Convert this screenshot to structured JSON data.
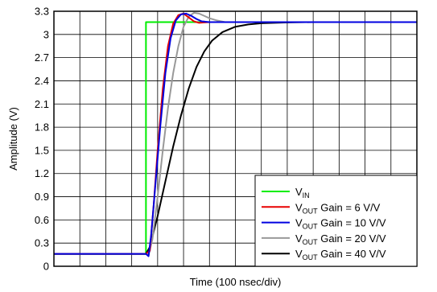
{
  "chart_data": {
    "type": "line",
    "xlabel": "Time (100 nsec/div)",
    "ylabel": "Amplitude (V)",
    "ylim": [
      0,
      3.3
    ],
    "x_divisions": 14,
    "y_ticks": [
      "0",
      "0.3",
      "0.6",
      "0.9",
      "1.2",
      "1.5",
      "1.8",
      "2.1",
      "2.4",
      "2.7",
      "3",
      "3.3"
    ],
    "grid": true,
    "legend_position": "bottom-right",
    "series": [
      {
        "name": "V_IN",
        "legend": {
          "main": "V",
          "sub": "IN",
          "rest": ""
        },
        "color": "#00ee00",
        "points": [
          [
            0,
            0.16
          ],
          [
            3.55,
            0.16
          ],
          [
            3.55,
            3.16
          ],
          [
            14,
            3.16
          ]
        ]
      },
      {
        "name": "V_OUT Gain = 6 V/V",
        "legend": {
          "main": "V",
          "sub": "OUT",
          "rest": " Gain = 6 V/V"
        },
        "color": "#e80000",
        "points": [
          [
            0,
            0.16
          ],
          [
            3.55,
            0.16
          ],
          [
            3.7,
            0.2
          ],
          [
            3.85,
            0.8
          ],
          [
            4.0,
            1.5
          ],
          [
            4.2,
            2.3
          ],
          [
            4.4,
            2.85
          ],
          [
            4.6,
            3.14
          ],
          [
            4.8,
            3.25
          ],
          [
            5.0,
            3.27
          ],
          [
            5.2,
            3.22
          ],
          [
            5.4,
            3.17
          ],
          [
            5.6,
            3.15
          ],
          [
            5.8,
            3.155
          ],
          [
            6.0,
            3.16
          ],
          [
            14,
            3.16
          ]
        ]
      },
      {
        "name": "V_OUT Gain = 10 V/V",
        "legend": {
          "main": "V",
          "sub": "OUT",
          "rest": " Gain = 10 V/V"
        },
        "color": "#0000e0",
        "points": [
          [
            0,
            0.16
          ],
          [
            3.55,
            0.16
          ],
          [
            3.65,
            0.13
          ],
          [
            3.75,
            0.4
          ],
          [
            3.9,
            1.0
          ],
          [
            4.1,
            1.8
          ],
          [
            4.3,
            2.5
          ],
          [
            4.5,
            2.95
          ],
          [
            4.7,
            3.18
          ],
          [
            4.9,
            3.26
          ],
          [
            5.1,
            3.27
          ],
          [
            5.3,
            3.24
          ],
          [
            5.5,
            3.2
          ],
          [
            5.7,
            3.17
          ],
          [
            6.0,
            3.16
          ],
          [
            14,
            3.16
          ]
        ]
      },
      {
        "name": "V_OUT Gain = 20 V/V",
        "legend": {
          "main": "V",
          "sub": "OUT",
          "rest": " Gain = 20 V/V"
        },
        "color": "#999999",
        "points": [
          [
            0,
            0.16
          ],
          [
            3.55,
            0.16
          ],
          [
            3.65,
            0.14
          ],
          [
            3.8,
            0.35
          ],
          [
            4.0,
            0.9
          ],
          [
            4.2,
            1.5
          ],
          [
            4.4,
            2.05
          ],
          [
            4.6,
            2.5
          ],
          [
            4.8,
            2.85
          ],
          [
            5.0,
            3.1
          ],
          [
            5.2,
            3.23
          ],
          [
            5.4,
            3.28
          ],
          [
            5.6,
            3.27
          ],
          [
            5.8,
            3.24
          ],
          [
            6.0,
            3.21
          ],
          [
            6.3,
            3.18
          ],
          [
            6.6,
            3.16
          ],
          [
            14,
            3.16
          ]
        ]
      },
      {
        "name": "V_OUT Gain = 40 V/V",
        "legend": {
          "main": "V",
          "sub": "OUT",
          "rest": " Gain = 40 V/V"
        },
        "color": "#000000",
        "points": [
          [
            0,
            0.16
          ],
          [
            3.55,
            0.16
          ],
          [
            3.7,
            0.25
          ],
          [
            4.0,
            0.65
          ],
          [
            4.3,
            1.1
          ],
          [
            4.6,
            1.55
          ],
          [
            4.9,
            1.95
          ],
          [
            5.2,
            2.3
          ],
          [
            5.5,
            2.58
          ],
          [
            5.8,
            2.78
          ],
          [
            6.1,
            2.92
          ],
          [
            6.5,
            3.03
          ],
          [
            7.0,
            3.1
          ],
          [
            7.5,
            3.13
          ],
          [
            8.0,
            3.145
          ],
          [
            9.0,
            3.155
          ],
          [
            10.0,
            3.16
          ],
          [
            14,
            3.16
          ]
        ]
      }
    ]
  }
}
